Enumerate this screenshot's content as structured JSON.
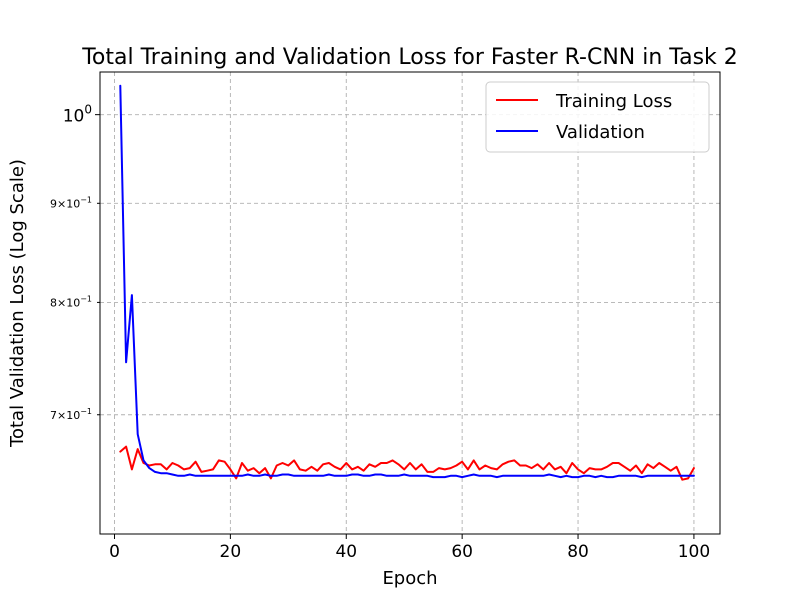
{
  "chart_data": {
    "type": "line",
    "title": "Total Training and Validation Loss for Faster R-CNN in Task 2",
    "xlabel": "Epoch",
    "ylabel": "Total Validation Loss (Log Scale)",
    "yscale": "log",
    "xlim": [
      -2.5,
      104.5
    ],
    "ylim": [
      0.6075,
      1.052
    ],
    "x_ticks": [
      0,
      20,
      40,
      60,
      80,
      100
    ],
    "x_tick_labels": [
      "0",
      "20",
      "40",
      "60",
      "80",
      "100"
    ],
    "y_ticks": [
      {
        "value": 1.0,
        "base": "10",
        "exp": "0",
        "coef": "",
        "major": true
      },
      {
        "value": 0.9,
        "base": "10",
        "exp": "−1",
        "coef": "9×",
        "major": false
      },
      {
        "value": 0.8,
        "base": "10",
        "exp": "−1",
        "coef": "8×",
        "major": false
      },
      {
        "value": 0.7,
        "base": "10",
        "exp": "−1",
        "coef": "7×",
        "major": false
      }
    ],
    "grid": true,
    "legend_position": "top-right",
    "series": [
      {
        "name": "Training Loss",
        "color": "#ff0000",
        "x": [
          1,
          2,
          3,
          4,
          5,
          6,
          7,
          8,
          9,
          10,
          11,
          12,
          13,
          14,
          15,
          16,
          17,
          18,
          19,
          20,
          21,
          22,
          23,
          24,
          25,
          26,
          27,
          28,
          29,
          30,
          31,
          32,
          33,
          34,
          35,
          36,
          37,
          38,
          39,
          40,
          41,
          42,
          43,
          44,
          45,
          46,
          47,
          48,
          49,
          50,
          51,
          52,
          53,
          54,
          55,
          56,
          57,
          58,
          59,
          60,
          61,
          62,
          63,
          64,
          65,
          66,
          67,
          68,
          69,
          70,
          71,
          72,
          73,
          74,
          75,
          76,
          77,
          78,
          79,
          80,
          81,
          82,
          83,
          84,
          85,
          86,
          87,
          88,
          89,
          90,
          91,
          92,
          93,
          94,
          95,
          96,
          97,
          98,
          99,
          100
        ],
        "values": [
          0.67,
          0.674,
          0.656,
          0.672,
          0.661,
          0.659,
          0.66,
          0.66,
          0.656,
          0.661,
          0.659,
          0.656,
          0.657,
          0.662,
          0.654,
          0.655,
          0.656,
          0.663,
          0.662,
          0.656,
          0.649,
          0.661,
          0.655,
          0.657,
          0.653,
          0.657,
          0.649,
          0.659,
          0.661,
          0.659,
          0.663,
          0.656,
          0.655,
          0.658,
          0.655,
          0.66,
          0.661,
          0.658,
          0.656,
          0.661,
          0.656,
          0.658,
          0.655,
          0.66,
          0.658,
          0.661,
          0.661,
          0.663,
          0.66,
          0.656,
          0.661,
          0.656,
          0.66,
          0.654,
          0.654,
          0.657,
          0.656,
          0.657,
          0.659,
          0.662,
          0.656,
          0.663,
          0.656,
          0.659,
          0.657,
          0.656,
          0.66,
          0.662,
          0.663,
          0.659,
          0.659,
          0.657,
          0.66,
          0.656,
          0.661,
          0.656,
          0.658,
          0.653,
          0.661,
          0.656,
          0.653,
          0.657,
          0.656,
          0.656,
          0.658,
          0.661,
          0.661,
          0.658,
          0.655,
          0.659,
          0.653,
          0.66,
          0.657,
          0.661,
          0.658,
          0.655,
          0.658,
          0.648,
          0.649,
          0.657
        ]
      },
      {
        "name": "Validation",
        "color": "#0000ff",
        "x": [
          1,
          2,
          3,
          4,
          5,
          6,
          7,
          8,
          9,
          10,
          11,
          12,
          13,
          14,
          15,
          16,
          17,
          18,
          19,
          20,
          21,
          22,
          23,
          24,
          25,
          26,
          27,
          28,
          29,
          30,
          31,
          32,
          33,
          34,
          35,
          36,
          37,
          38,
          39,
          40,
          41,
          42,
          43,
          44,
          45,
          46,
          47,
          48,
          49,
          50,
          51,
          52,
          53,
          54,
          55,
          56,
          57,
          58,
          59,
          60,
          61,
          62,
          63,
          64,
          65,
          66,
          67,
          68,
          69,
          70,
          71,
          72,
          73,
          74,
          75,
          76,
          77,
          78,
          79,
          80,
          81,
          82,
          83,
          84,
          85,
          86,
          87,
          88,
          89,
          90,
          91,
          92,
          93,
          94,
          95,
          96,
          97,
          98,
          99,
          100
        ],
        "values": [
          1.035,
          0.745,
          0.807,
          0.684,
          0.663,
          0.657,
          0.654,
          0.653,
          0.653,
          0.652,
          0.651,
          0.651,
          0.652,
          0.651,
          0.651,
          0.651,
          0.651,
          0.651,
          0.651,
          0.651,
          0.651,
          0.651,
          0.652,
          0.651,
          0.651,
          0.652,
          0.651,
          0.651,
          0.652,
          0.652,
          0.651,
          0.651,
          0.651,
          0.651,
          0.651,
          0.651,
          0.652,
          0.651,
          0.651,
          0.651,
          0.652,
          0.652,
          0.651,
          0.651,
          0.652,
          0.652,
          0.651,
          0.651,
          0.651,
          0.652,
          0.651,
          0.651,
          0.651,
          0.651,
          0.65,
          0.65,
          0.65,
          0.651,
          0.651,
          0.65,
          0.651,
          0.652,
          0.651,
          0.651,
          0.651,
          0.65,
          0.651,
          0.651,
          0.651,
          0.651,
          0.651,
          0.651,
          0.651,
          0.651,
          0.652,
          0.651,
          0.65,
          0.651,
          0.65,
          0.65,
          0.651,
          0.651,
          0.65,
          0.651,
          0.65,
          0.65,
          0.651,
          0.651,
          0.651,
          0.651,
          0.65,
          0.651,
          0.651,
          0.651,
          0.651,
          0.651,
          0.651,
          0.651,
          0.651,
          0.651
        ]
      }
    ]
  }
}
